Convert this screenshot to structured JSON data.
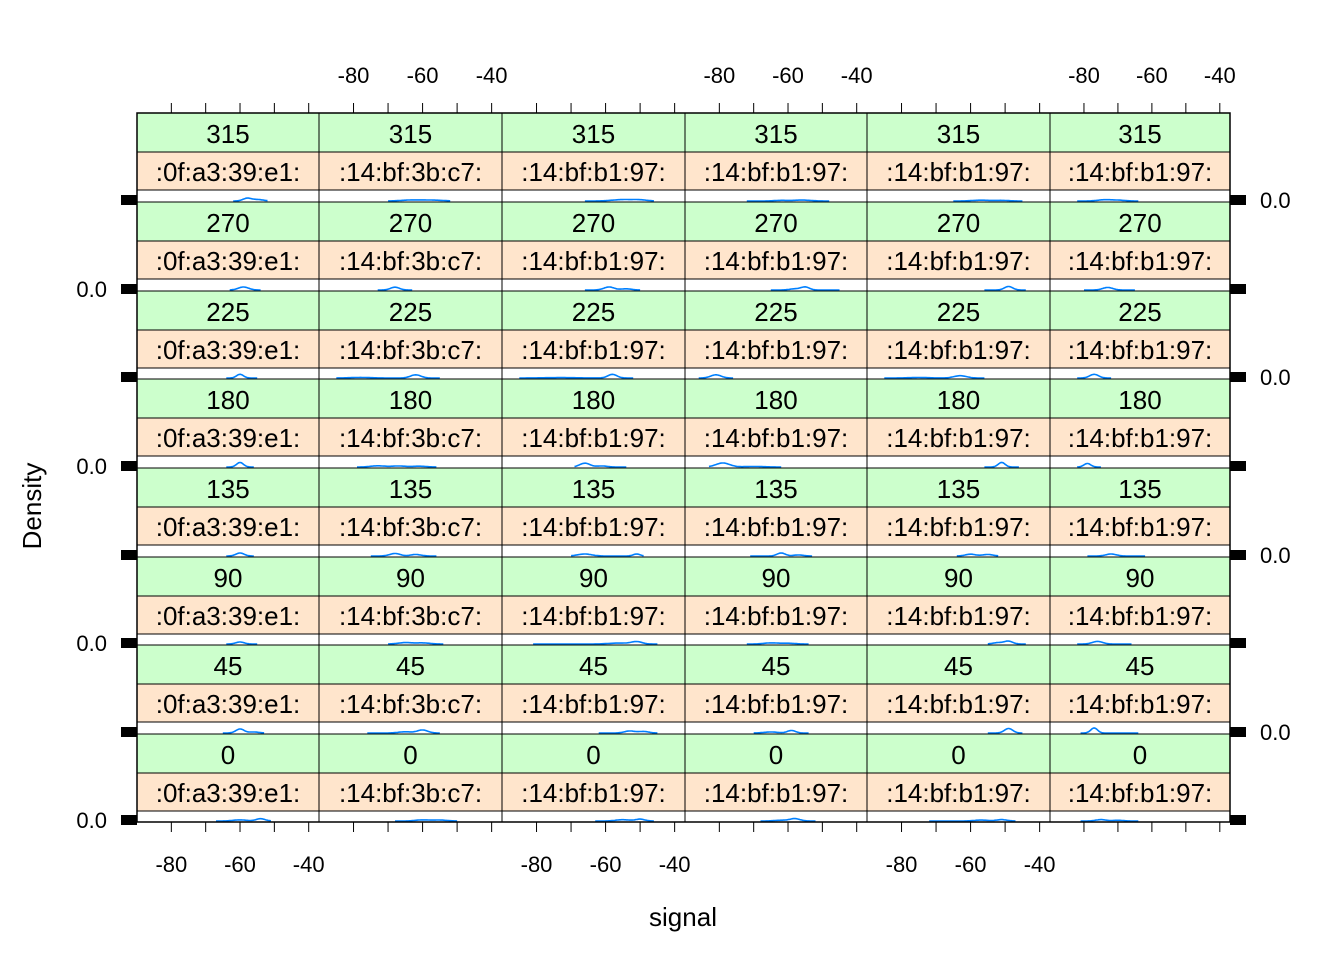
{
  "colors": {
    "panel_border": "#000000",
    "strip_angle_fill": "#ccffcc",
    "strip_mac_fill": "#ffe5cc",
    "density_line": "#0080ff",
    "background": "#ffffff"
  },
  "chart_data": {
    "type": "density-lattice",
    "xlabel": "signal",
    "ylabel": "Density",
    "xlim": [
      -90,
      -37
    ],
    "ylim": [
      0,
      1.2
    ],
    "x_ticks": [
      -80,
      -60,
      -40
    ],
    "y_tick_labels": [
      "0.0"
    ],
    "angles": [
      "0",
      "45",
      "90",
      "135",
      "180",
      "225",
      "270",
      "315"
    ],
    "macs": [
      ":0f:a3:39:e1:",
      ":14:bf:3b:c7:",
      ":14:bf:b1:97:",
      ":14:bf:b1:97:",
      ":14:bf:b1:97:",
      ":14:bf:b1:97:"
    ],
    "panels": [
      {
        "row": 0,
        "col": 0,
        "peaks": [
          [
            -58,
            0.25,
            1.2
          ],
          [
            -55,
            0.15,
            1.8
          ]
        ],
        "range": [
          -62,
          -52
        ]
      },
      {
        "row": 0,
        "col": 1,
        "peaks": [
          [
            -63,
            0.1,
            3
          ],
          [
            -57,
            0.08,
            3
          ]
        ],
        "range": [
          -70,
          -52
        ]
      },
      {
        "row": 0,
        "col": 2,
        "peaks": [
          [
            -55,
            0.14,
            3
          ],
          [
            -50,
            0.1,
            2
          ]
        ],
        "range": [
          -66,
          -46
        ]
      },
      {
        "row": 0,
        "col": 3,
        "peaks": [
          [
            -62,
            0.06,
            2
          ],
          [
            -56,
            0.09,
            2.5
          ]
        ],
        "range": [
          -72,
          -48
        ]
      },
      {
        "row": 0,
        "col": 4,
        "peaks": [
          [
            -57,
            0.08,
            2.5
          ],
          [
            -51,
            0.06,
            2
          ]
        ],
        "range": [
          -65,
          -45
        ]
      },
      {
        "row": 0,
        "col": 5,
        "peaks": [
          [
            -74,
            0.12,
            2
          ],
          [
            -70,
            0.08,
            2
          ]
        ],
        "range": [
          -82,
          -64
        ]
      },
      {
        "row": 1,
        "col": 0,
        "peaks": [
          [
            -59,
            0.3,
            1.5
          ]
        ],
        "range": [
          -63,
          -54
        ]
      },
      {
        "row": 1,
        "col": 1,
        "peaks": [
          [
            -68,
            0.28,
            1.3
          ]
        ],
        "range": [
          -73,
          -63
        ]
      },
      {
        "row": 1,
        "col": 2,
        "peaks": [
          [
            -59,
            0.3,
            1.5
          ],
          [
            -54,
            0.12,
            1.5
          ]
        ],
        "range": [
          -66,
          -50
        ]
      },
      {
        "row": 1,
        "col": 3,
        "peaks": [
          [
            -55,
            0.3,
            1.2
          ],
          [
            -58,
            0.12,
            1.5
          ]
        ],
        "range": [
          -65,
          -45
        ]
      },
      {
        "row": 1,
        "col": 4,
        "peaks": [
          [
            -49,
            0.35,
            1.2
          ]
        ],
        "range": [
          -56,
          -44
        ]
      },
      {
        "row": 1,
        "col": 5,
        "peaks": [
          [
            -73,
            0.25,
            1.5
          ]
        ],
        "range": [
          -80,
          -65
        ]
      },
      {
        "row": 2,
        "col": 0,
        "peaks": [
          [
            -60,
            0.4,
            1
          ]
        ],
        "range": [
          -64,
          -55
        ]
      },
      {
        "row": 2,
        "col": 1,
        "peaks": [
          [
            -78,
            0.06,
            3
          ],
          [
            -62,
            0.35,
            1.5
          ]
        ],
        "range": [
          -85,
          -55
        ]
      },
      {
        "row": 2,
        "col": 2,
        "peaks": [
          [
            -73,
            0.04,
            5
          ],
          [
            -58,
            0.4,
            1.3
          ]
        ],
        "range": [
          -85,
          -52
        ]
      },
      {
        "row": 2,
        "col": 3,
        "peaks": [
          [
            -81,
            0.35,
            1.5
          ]
        ],
        "range": [
          -86,
          -76
        ]
      },
      {
        "row": 2,
        "col": 4,
        "peaks": [
          [
            -75,
            0.05,
            3
          ],
          [
            -63,
            0.25,
            1.8
          ]
        ],
        "range": [
          -85,
          -56
        ]
      },
      {
        "row": 2,
        "col": 5,
        "peaks": [
          [
            -77,
            0.4,
            1.3
          ]
        ],
        "range": [
          -82,
          -72
        ]
      },
      {
        "row": 3,
        "col": 0,
        "peaks": [
          [
            -60,
            0.45,
            1
          ]
        ],
        "range": [
          -64,
          -56
        ]
      },
      {
        "row": 3,
        "col": 1,
        "peaks": [
          [
            -73,
            0.12,
            2
          ],
          [
            -67,
            0.1,
            2
          ],
          [
            -61,
            0.08,
            2
          ]
        ],
        "range": [
          -79,
          -56
        ]
      },
      {
        "row": 3,
        "col": 2,
        "peaks": [
          [
            -66,
            0.38,
            1.5
          ],
          [
            -61,
            0.1,
            1.5
          ]
        ],
        "range": [
          -69,
          -54
        ]
      },
      {
        "row": 3,
        "col": 3,
        "peaks": [
          [
            -79,
            0.4,
            2
          ],
          [
            -70,
            0.05,
            3
          ]
        ],
        "range": [
          -83,
          -62
        ]
      },
      {
        "row": 3,
        "col": 4,
        "peaks": [
          [
            -51,
            0.45,
            1
          ]
        ],
        "range": [
          -56,
          -46
        ]
      },
      {
        "row": 3,
        "col": 5,
        "peaks": [
          [
            -79,
            0.35,
            1
          ]
        ],
        "range": [
          -82,
          -75
        ]
      },
      {
        "row": 4,
        "col": 0,
        "peaks": [
          [
            -60,
            0.3,
            1.2
          ]
        ],
        "range": [
          -64,
          -56
        ]
      },
      {
        "row": 4,
        "col": 1,
        "peaks": [
          [
            -68,
            0.25,
            1.5
          ],
          [
            -62,
            0.15,
            1.5
          ]
        ],
        "range": [
          -75,
          -56
        ]
      },
      {
        "row": 4,
        "col": 2,
        "peaks": [
          [
            -66,
            0.2,
            2
          ],
          [
            -51,
            0.2,
            1
          ]
        ],
        "range": [
          -70,
          -49
        ]
      },
      {
        "row": 4,
        "col": 3,
        "peaks": [
          [
            -62,
            0.3,
            1.2
          ],
          [
            -57,
            0.1,
            1.5
          ]
        ],
        "range": [
          -71,
          -53
        ]
      },
      {
        "row": 4,
        "col": 4,
        "peaks": [
          [
            -60,
            0.18,
            1.5
          ],
          [
            -55,
            0.15,
            1.5
          ]
        ],
        "range": [
          -64,
          -52
        ]
      },
      {
        "row": 4,
        "col": 5,
        "peaks": [
          [
            -72,
            0.2,
            1.5
          ]
        ],
        "range": [
          -79,
          -62
        ]
      },
      {
        "row": 5,
        "col": 0,
        "peaks": [
          [
            -60,
            0.22,
            1.2
          ]
        ],
        "range": [
          -64,
          -55
        ]
      },
      {
        "row": 5,
        "col": 1,
        "peaks": [
          [
            -65,
            0.15,
            2
          ],
          [
            -60,
            0.12,
            2
          ]
        ],
        "range": [
          -70,
          -54
        ]
      },
      {
        "row": 5,
        "col": 2,
        "peaks": [
          [
            -56,
            0.1,
            3
          ],
          [
            -51,
            0.25,
            1.5
          ]
        ],
        "range": [
          -81,
          -45
        ]
      },
      {
        "row": 5,
        "col": 3,
        "peaks": [
          [
            -65,
            0.12,
            2
          ],
          [
            -60,
            0.08,
            2
          ]
        ],
        "range": [
          -72,
          -54
        ]
      },
      {
        "row": 5,
        "col": 4,
        "peaks": [
          [
            -49,
            0.3,
            1.2
          ],
          [
            -52,
            0.15,
            1.5
          ]
        ],
        "range": [
          -55,
          -44
        ]
      },
      {
        "row": 5,
        "col": 5,
        "peaks": [
          [
            -76,
            0.28,
            1.5
          ]
        ],
        "range": [
          -82,
          -66
        ]
      },
      {
        "row": 6,
        "col": 0,
        "peaks": [
          [
            -60,
            0.4,
            1.2
          ],
          [
            -56,
            0.1,
            1.5
          ]
        ],
        "range": [
          -65,
          -53
        ]
      },
      {
        "row": 6,
        "col": 1,
        "peaks": [
          [
            -65,
            0.12,
            2
          ],
          [
            -60,
            0.3,
            1.5
          ]
        ],
        "range": [
          -76,
          -55
        ]
      },
      {
        "row": 6,
        "col": 2,
        "peaks": [
          [
            -53,
            0.2,
            1.5
          ],
          [
            -49,
            0.15,
            1.5
          ]
        ],
        "range": [
          -62,
          -45
        ]
      },
      {
        "row": 6,
        "col": 3,
        "peaks": [
          [
            -65,
            0.1,
            2
          ],
          [
            -59,
            0.25,
            1.2
          ]
        ],
        "range": [
          -70,
          -54
        ]
      },
      {
        "row": 6,
        "col": 4,
        "peaks": [
          [
            -49,
            0.45,
            1.2
          ]
        ],
        "range": [
          -55,
          -45
        ]
      },
      {
        "row": 6,
        "col": 5,
        "peaks": [
          [
            -77,
            0.5,
            1
          ]
        ],
        "range": [
          -81,
          -64
        ]
      },
      {
        "row": 7,
        "col": 0,
        "peaks": [
          [
            -60,
            0.12,
            2
          ],
          [
            -54,
            0.25,
            1.3
          ]
        ],
        "range": [
          -67,
          -51
        ]
      },
      {
        "row": 7,
        "col": 1,
        "peaks": [
          [
            -60,
            0.12,
            2
          ],
          [
            -55,
            0.1,
            2
          ]
        ],
        "range": [
          -68,
          -50
        ]
      },
      {
        "row": 7,
        "col": 2,
        "peaks": [
          [
            -55,
            0.14,
            2
          ],
          [
            -50,
            0.2,
            1.3
          ]
        ],
        "range": [
          -63,
          -46
        ]
      },
      {
        "row": 7,
        "col": 3,
        "peaks": [
          [
            -58,
            0.25,
            1.5
          ],
          [
            -62,
            0.08,
            2
          ]
        ],
        "range": [
          -68,
          -52
        ]
      },
      {
        "row": 7,
        "col": 4,
        "peaks": [
          [
            -57,
            0.1,
            2
          ],
          [
            -51,
            0.15,
            1.5
          ]
        ],
        "range": [
          -72,
          -47
        ]
      },
      {
        "row": 7,
        "col": 5,
        "peaks": [
          [
            -75,
            0.15,
            1.5
          ],
          [
            -70,
            0.08,
            1.5
          ]
        ],
        "range": [
          -81,
          -64
        ]
      }
    ]
  }
}
